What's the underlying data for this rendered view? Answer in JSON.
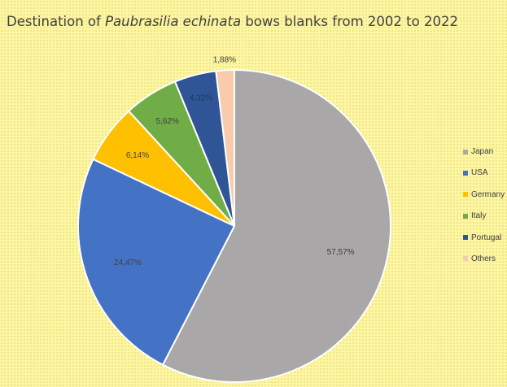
{
  "chart_data": {
    "type": "pie",
    "title": {
      "prefix": "Destination of ",
      "species": "Paubrasilia echinata",
      "suffix": " bows blanks from 2002 to 2022"
    },
    "slices": [
      {
        "name": "Japan",
        "value": 57.57,
        "label": "57,57%",
        "color": "#a9a7a7"
      },
      {
        "name": "USA",
        "value": 24.47,
        "label": "24,47%",
        "color": "#4472c4"
      },
      {
        "name": "Germany",
        "value": 6.14,
        "label": "6,14%",
        "color": "#ffc000"
      },
      {
        "name": "Italy",
        "value": 5.62,
        "label": "5,62%",
        "color": "#70ad47"
      },
      {
        "name": "Portugal",
        "value": 4.32,
        "label": "4,32%",
        "color": "#2f5597"
      },
      {
        "name": "Others",
        "value": 1.88,
        "label": "1,88%",
        "color": "#f8cbad"
      }
    ],
    "legend_position": "right",
    "start_angle": "12 o'clock",
    "direction": "clockwise"
  }
}
